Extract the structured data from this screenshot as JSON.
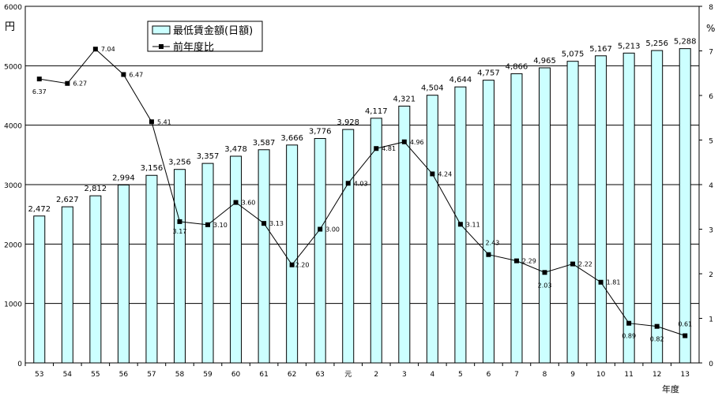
{
  "chart_data": {
    "type": "bar+line",
    "categories": [
      "53",
      "54",
      "55",
      "56",
      "57",
      "58",
      "59",
      "60",
      "61",
      "62",
      "63",
      "元",
      "2",
      "3",
      "4",
      "5",
      "6",
      "7",
      "8",
      "9",
      "10",
      "11",
      "12",
      "13"
    ],
    "series": [
      {
        "name": "最低賃金額(日額)",
        "type": "bar",
        "axis": "left",
        "color": "#ccffff",
        "values": [
          2472,
          2627,
          2812,
          2994,
          3156,
          3256,
          3357,
          3478,
          3587,
          3666,
          3776,
          3928,
          4117,
          4321,
          4504,
          4644,
          4757,
          4866,
          4965,
          5075,
          5167,
          5213,
          5256,
          5288
        ],
        "labels": [
          "2,472",
          "2,627",
          "2,812",
          "2,994",
          "3,156",
          "3,256",
          "3,357",
          "3,478",
          "3,587",
          "3,666",
          "3,776",
          "3,928",
          "4,117",
          "4,321",
          "4,504",
          "4,644",
          "4,757",
          "4,866",
          "4,965",
          "5,075",
          "5,167",
          "5,213",
          "5,256",
          "5,288"
        ]
      },
      {
        "name": "前年度比",
        "type": "line",
        "axis": "right",
        "color": "#000000",
        "values": [
          6.37,
          6.27,
          7.04,
          6.47,
          5.41,
          3.17,
          3.1,
          3.6,
          3.13,
          2.2,
          3.0,
          4.03,
          4.81,
          4.96,
          4.24,
          3.11,
          2.43,
          2.29,
          2.03,
          2.22,
          1.81,
          0.89,
          0.82,
          0.61
        ],
        "labels": [
          "6.37",
          "6.27",
          "7.04",
          "6.47",
          "5.41",
          "3.17",
          "3.10",
          "3.60",
          "3.13",
          "2.20",
          "3.00",
          "4.03",
          "4.81",
          "4.96",
          "4.24",
          "3.11",
          "2.43",
          "2.29",
          "2.03",
          "2.22",
          "1.81",
          "0.89",
          "0.82",
          "0.61"
        ]
      }
    ],
    "y_left": {
      "label": "円",
      "ylim": [
        0,
        6000
      ],
      "ticks": [
        "0",
        "1000",
        "2000",
        "3000",
        "4000",
        "5000",
        "6000"
      ]
    },
    "y_right": {
      "label": "%",
      "ylim": [
        0,
        8
      ],
      "ticks": [
        "0",
        "1",
        "2",
        "3",
        "4",
        "5",
        "6",
        "7",
        "8"
      ]
    },
    "xlabel": "年度",
    "grid": true,
    "legend": "top-left-center"
  }
}
